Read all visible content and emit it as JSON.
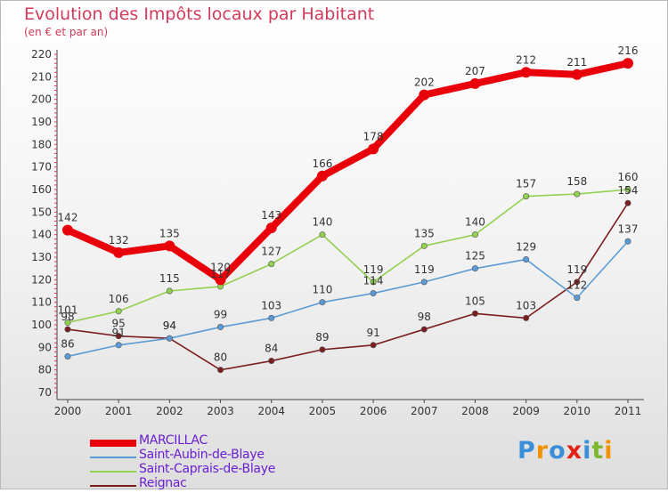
{
  "chart_data": {
    "type": "line",
    "title": "Evolution des Impôts locaux par Habitant",
    "subtitle": "(en € et par an)",
    "x": [
      "2000",
      "2001",
      "2002",
      "2003",
      "2004",
      "2005",
      "2006",
      "2007",
      "2008",
      "2009",
      "2010",
      "2011"
    ],
    "yticks": [
      70,
      80,
      90,
      100,
      110,
      120,
      130,
      140,
      150,
      160,
      170,
      180,
      190,
      200,
      210,
      220
    ],
    "ylim": [
      70,
      220
    ],
    "grid": false,
    "legend_position": "bottom-left",
    "series": [
      {
        "name": "MARCILLAC",
        "color": "#e8000b",
        "values": [
          142,
          132,
          135,
          120,
          143,
          166,
          178,
          202,
          207,
          212,
          211,
          216
        ]
      },
      {
        "name": "Saint-Aubin-de-Blaye",
        "color": "#5b9bd5",
        "values": [
          86,
          91,
          94,
          99,
          103,
          110,
          114,
          119,
          125,
          129,
          112,
          137
        ]
      },
      {
        "name": "Saint-Caprais-de-Blaye",
        "color": "#92d050",
        "values": [
          101,
          106,
          115,
          117,
          127,
          140,
          119,
          135,
          140,
          157,
          158,
          160
        ]
      },
      {
        "name": "Reignac",
        "color": "#7b1e1e",
        "values": [
          98,
          95,
          94,
          80,
          84,
          89,
          91,
          98,
          105,
          103,
          119,
          154
        ]
      }
    ]
  },
  "logo": {
    "letters": [
      "P",
      "r",
      "o",
      "x",
      "i",
      "t",
      "i"
    ],
    "colors": [
      "#3b8fd9",
      "#f39200",
      "#3b8fd9",
      "#e2231a",
      "#3b8fd9",
      "#7cb82f",
      "#f39200"
    ]
  }
}
